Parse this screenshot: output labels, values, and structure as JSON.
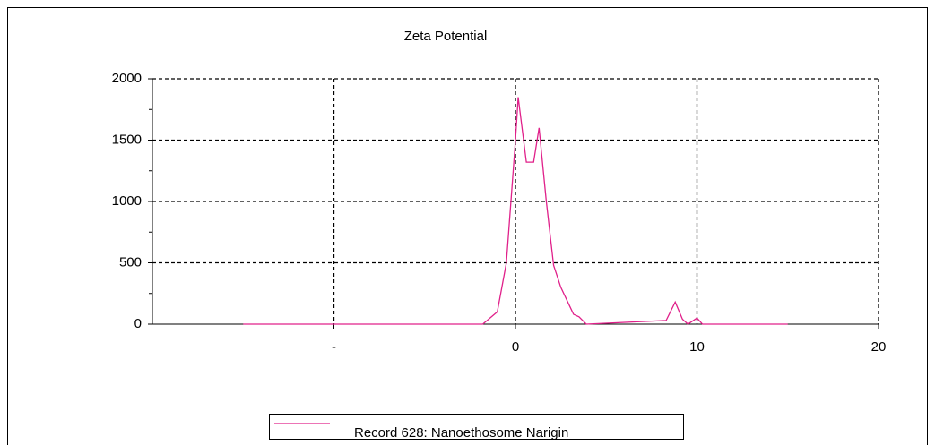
{
  "chart_data": {
    "type": "line",
    "title": "Zeta Potential",
    "x": [
      -15,
      -2,
      -1.8,
      -1.0,
      -0.5,
      0,
      0.15,
      0.6,
      1.0,
      1.3,
      1.7,
      2.1,
      2.5,
      3.2,
      3.5,
      3.9,
      8.3,
      8.8,
      9.2,
      9.5,
      10,
      10.3,
      15
    ],
    "series": [
      {
        "name": "Record 628: Nanoethosome Narigin",
        "color": "#e0208a",
        "values": [
          0,
          0,
          0,
          100,
          500,
          1500,
          1850,
          1320,
          1320,
          1600,
          1000,
          480,
          300,
          80,
          60,
          0,
          30,
          180,
          40,
          0,
          50,
          0,
          0
        ]
      }
    ],
    "xlim": [
      -20,
      20
    ],
    "xticks": [
      {
        "value": -10,
        "label": "-"
      },
      0,
      10,
      20
    ],
    "ylim": [
      0,
      2000
    ],
    "yticks": [
      0,
      500,
      1000,
      1500,
      2000
    ],
    "minor_yticks": [
      250,
      750,
      1250,
      1750
    ],
    "grid": true
  }
}
